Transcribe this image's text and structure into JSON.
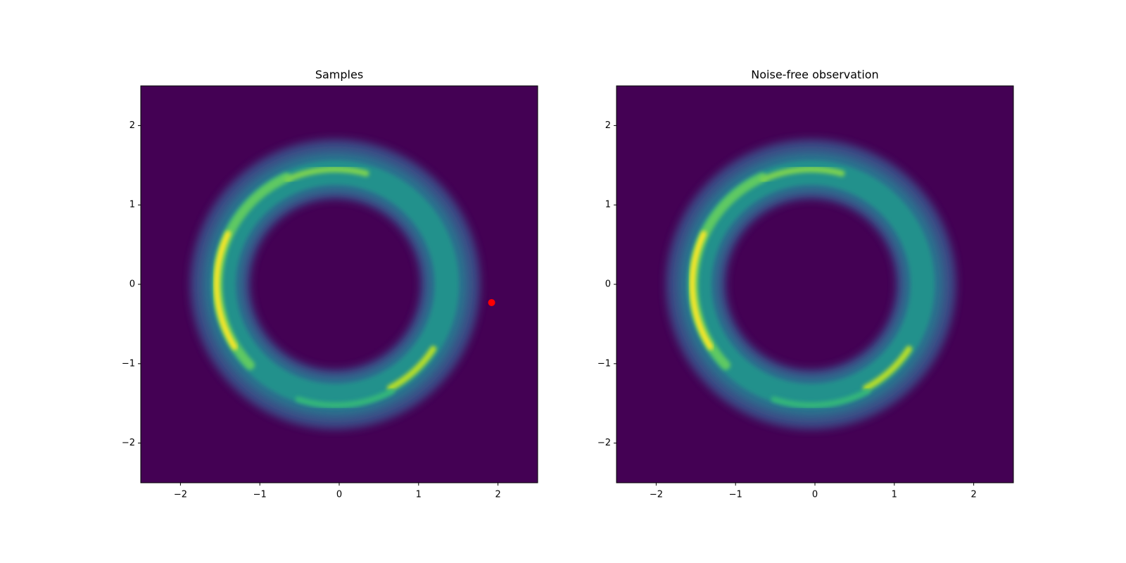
{
  "chart_data": [
    {
      "type": "hist2d",
      "title": "Samples",
      "background": "#440154",
      "xlim": [
        -2.5,
        2.5
      ],
      "ylim": [
        -2.5,
        2.5
      ],
      "xticks": [
        {
          "value": -2,
          "label": "−2"
        },
        {
          "value": -1,
          "label": "−1"
        },
        0,
        1,
        2
      ],
      "yticks": [
        {
          "value": -2,
          "label": "−2"
        },
        {
          "value": -1,
          "label": "−1"
        },
        0,
        1,
        2
      ],
      "points": {
        "x": [
          1.92
        ],
        "y": [
          -0.23
        ],
        "color": "#ff0000"
      }
    },
    {
      "type": "hist2d",
      "title": "Noise-free observation",
      "background": "#440154",
      "xlim": [
        -2.5,
        2.5
      ],
      "ylim": [
        -2.5,
        2.5
      ],
      "xticks": [
        {
          "value": -2,
          "label": "−2"
        },
        {
          "value": -1,
          "label": "−1"
        },
        0,
        1,
        2
      ],
      "yticks": [
        {
          "value": -2,
          "label": "−2"
        },
        {
          "value": -1,
          "label": "−1"
        },
        0,
        1,
        2
      ]
    }
  ]
}
